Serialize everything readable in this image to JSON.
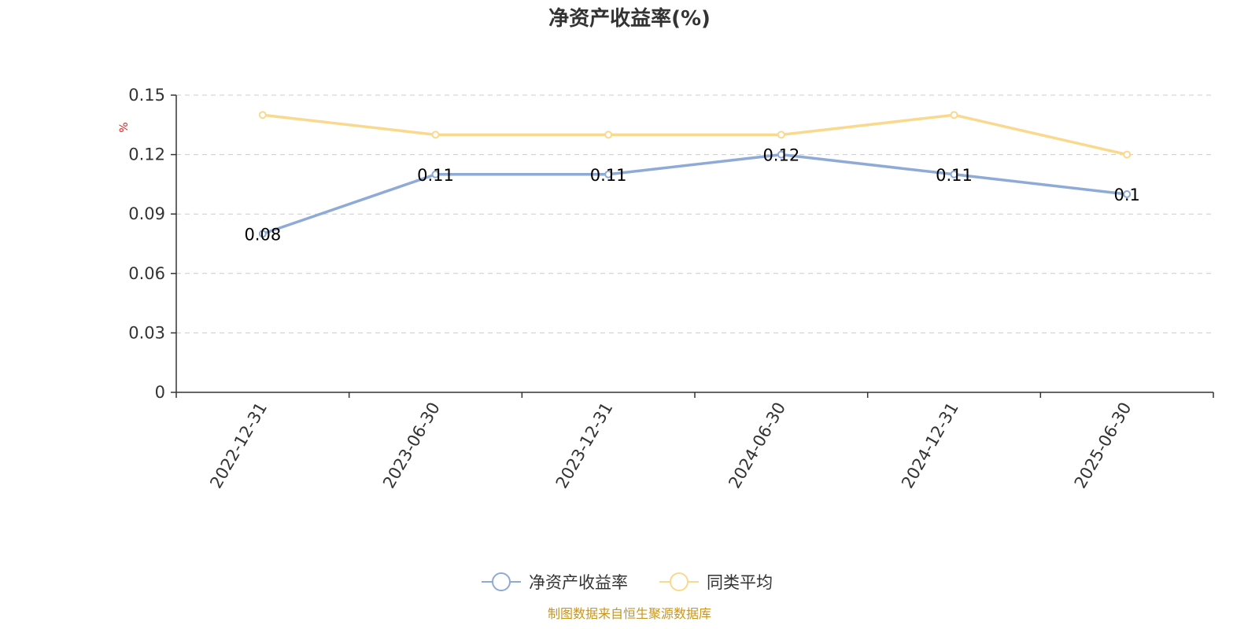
{
  "chart_data": {
    "type": "line",
    "title": "净资产收益率(%)",
    "ylabel": "%",
    "xlabel": "",
    "categories": [
      "2022-12-31",
      "2023-06-30",
      "2023-12-31",
      "2024-06-30",
      "2024-12-31",
      "2025-06-30"
    ],
    "series": [
      {
        "name": "净资产收益率",
        "values": [
          0.08,
          0.11,
          0.11,
          0.12,
          0.11,
          0.1
        ],
        "data_labels": [
          "0.08",
          "0.11",
          "0.11",
          "0.12",
          "0.11",
          "0.1"
        ],
        "color": "#8eaad6"
      },
      {
        "name": "同类平均",
        "values": [
          0.14,
          0.13,
          0.13,
          0.13,
          0.14,
          0.12
        ],
        "color": "#fad98f"
      }
    ],
    "ylim": [
      0,
      0.15
    ],
    "yticks": [
      0,
      0.03,
      0.06,
      0.09,
      0.12,
      0.15
    ],
    "ytick_labels": [
      "0",
      "0.03",
      "0.06",
      "0.09",
      "0.12",
      "0.15"
    ],
    "grid": true,
    "legend_position": "bottom-center",
    "unit_color": "#e02020",
    "source_color": "#c8961e",
    "source": "制图数据来自恒生聚源数据库"
  }
}
